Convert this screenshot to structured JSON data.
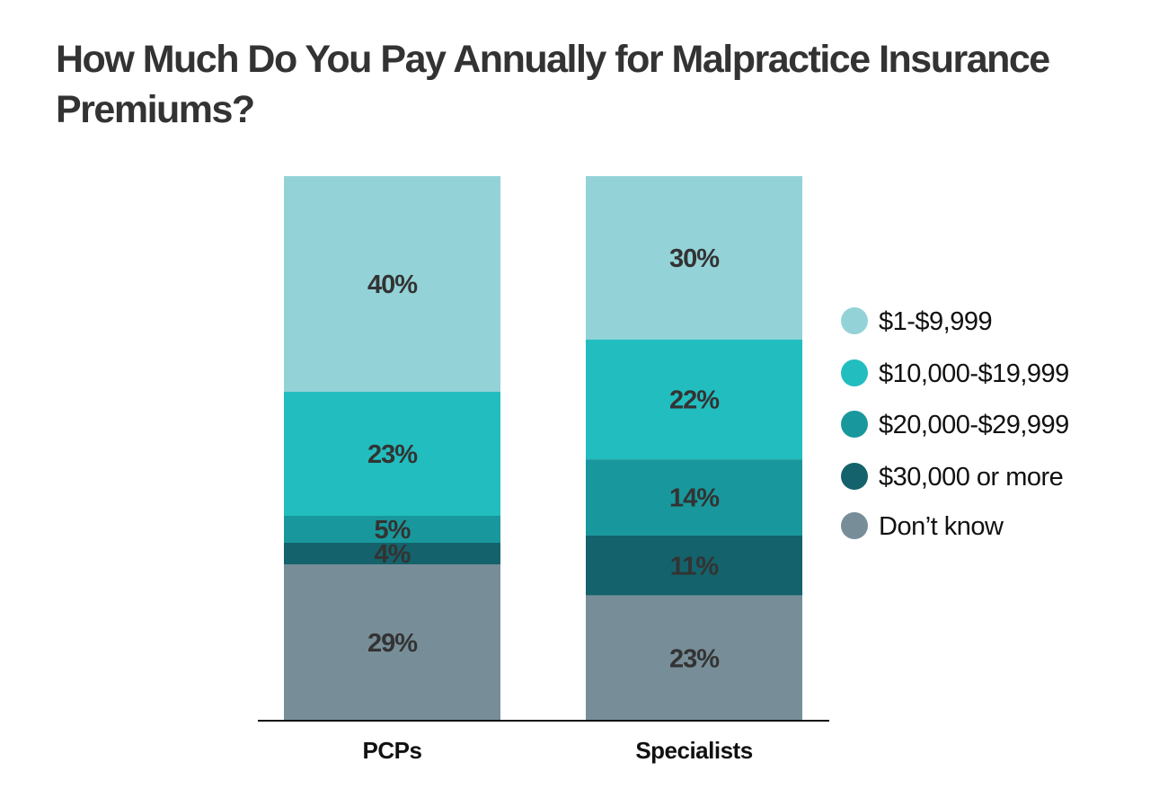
{
  "chart_data": {
    "type": "bar",
    "stacked": true,
    "title": "How Much Do You Pay Annually for Malpractice Insurance Premiums?",
    "xlabel": "",
    "ylabel": "",
    "categories": [
      "PCPs",
      "Specialists"
    ],
    "series": [
      {
        "name": "$1-$9,999",
        "color": "#93d3d8",
        "values": [
          40,
          30
        ]
      },
      {
        "name": "$10,000-$19,999",
        "color": "#22bdbf",
        "values": [
          23,
          22
        ]
      },
      {
        "name": "$20,000-$29,999",
        "color": "#18989c",
        "values": [
          5,
          14
        ]
      },
      {
        "name": "$30,000 or more",
        "color": "#14626b",
        "values": [
          4,
          11
        ]
      },
      {
        "name": "Don’t know",
        "color": "#778e99",
        "values": [
          29,
          23
        ]
      }
    ],
    "value_suffix": "%",
    "legend": "right",
    "grid": false
  }
}
